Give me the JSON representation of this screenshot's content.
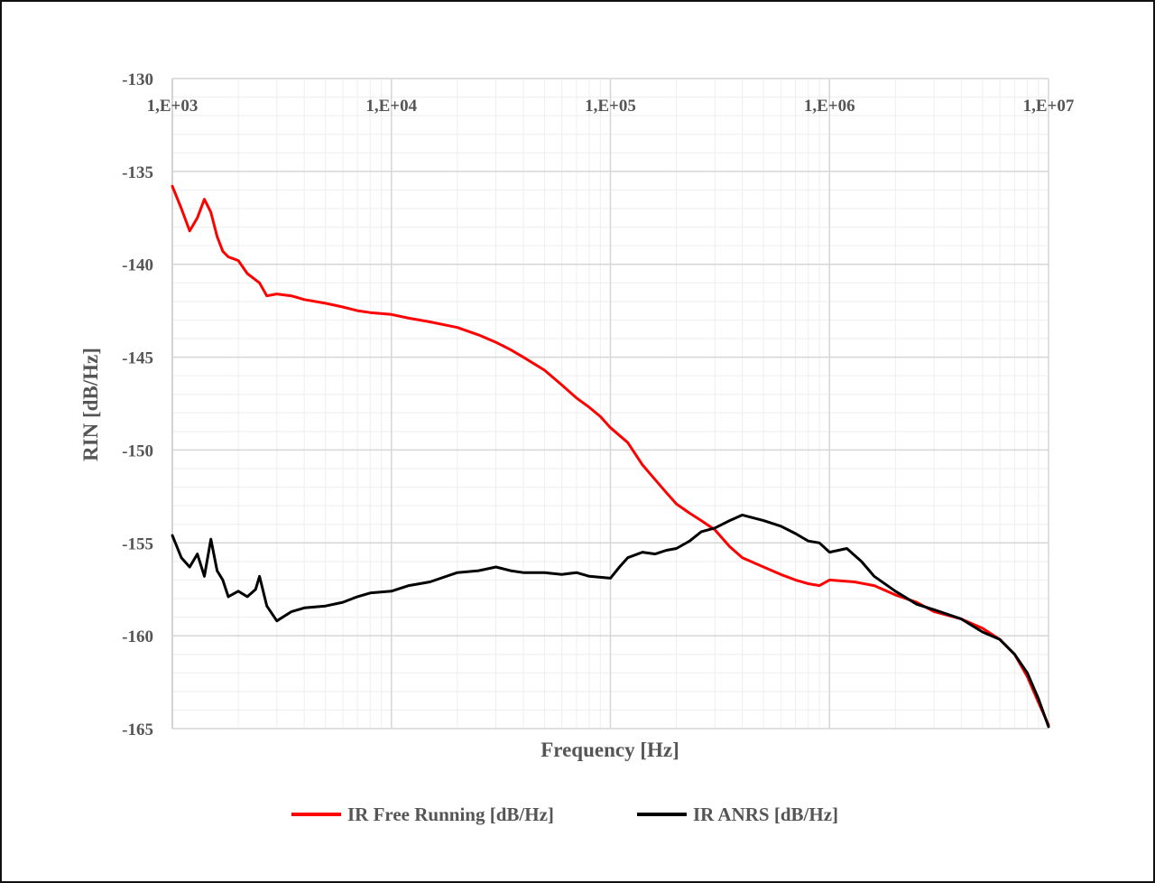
{
  "chart_data": {
    "type": "line",
    "x_scale": "log",
    "xlim": [
      1000,
      10000000
    ],
    "ylim": [
      -165,
      -130
    ],
    "x_tick_values": [
      1000,
      10000,
      100000,
      1000000,
      10000000
    ],
    "x_tick_labels": [
      "1,E+03",
      "1,E+04",
      "1,E+05",
      "1,E+06",
      "1,E+07"
    ],
    "x_tick_position": "top",
    "y_ticks": [
      -130,
      -135,
      -140,
      -145,
      -150,
      -155,
      -160,
      -165
    ],
    "xlabel": "Frequency  [Hz]",
    "ylabel": "RIN [dB/Hz]",
    "grid": true,
    "legend_position": "bottom",
    "series": [
      {
        "name": "IR Free Running [dB/Hz]",
        "color": "#ff0000",
        "points": [
          [
            1000,
            -135.8
          ],
          [
            1100,
            -137.0
          ],
          [
            1200,
            -138.2
          ],
          [
            1300,
            -137.5
          ],
          [
            1400,
            -136.5
          ],
          [
            1500,
            -137.2
          ],
          [
            1600,
            -138.5
          ],
          [
            1700,
            -139.3
          ],
          [
            1800,
            -139.6
          ],
          [
            2000,
            -139.8
          ],
          [
            2200,
            -140.5
          ],
          [
            2500,
            -141.0
          ],
          [
            2700,
            -141.7
          ],
          [
            3000,
            -141.6
          ],
          [
            3500,
            -141.7
          ],
          [
            4000,
            -141.9
          ],
          [
            5000,
            -142.1
          ],
          [
            6000,
            -142.3
          ],
          [
            7000,
            -142.5
          ],
          [
            8000,
            -142.6
          ],
          [
            10000,
            -142.7
          ],
          [
            12000,
            -142.9
          ],
          [
            15000,
            -143.1
          ],
          [
            20000,
            -143.4
          ],
          [
            25000,
            -143.8
          ],
          [
            30000,
            -144.2
          ],
          [
            35000,
            -144.6
          ],
          [
            40000,
            -145.0
          ],
          [
            50000,
            -145.7
          ],
          [
            60000,
            -146.5
          ],
          [
            70000,
            -147.2
          ],
          [
            80000,
            -147.7
          ],
          [
            90000,
            -148.2
          ],
          [
            100000,
            -148.8
          ],
          [
            120000,
            -149.6
          ],
          [
            140000,
            -150.8
          ],
          [
            160000,
            -151.6
          ],
          [
            180000,
            -152.3
          ],
          [
            200000,
            -152.9
          ],
          [
            230000,
            -153.4
          ],
          [
            260000,
            -153.8
          ],
          [
            300000,
            -154.3
          ],
          [
            350000,
            -155.2
          ],
          [
            400000,
            -155.8
          ],
          [
            500000,
            -156.3
          ],
          [
            600000,
            -156.7
          ],
          [
            700000,
            -157.0
          ],
          [
            800000,
            -157.2
          ],
          [
            900000,
            -157.3
          ],
          [
            1000000,
            -157.0
          ],
          [
            1300000,
            -157.1
          ],
          [
            1600000,
            -157.3
          ],
          [
            2000000,
            -157.8
          ],
          [
            2500000,
            -158.2
          ],
          [
            3000000,
            -158.7
          ],
          [
            4000000,
            -159.1
          ],
          [
            5000000,
            -159.6
          ],
          [
            6000000,
            -160.2
          ],
          [
            7000000,
            -161.0
          ],
          [
            8000000,
            -162.2
          ],
          [
            9000000,
            -163.6
          ],
          [
            10000000,
            -164.8
          ]
        ]
      },
      {
        "name": "IR ANRS [dB/Hz]",
        "color": "#000000",
        "points": [
          [
            1000,
            -154.6
          ],
          [
            1100,
            -155.8
          ],
          [
            1200,
            -156.3
          ],
          [
            1300,
            -155.6
          ],
          [
            1400,
            -156.8
          ],
          [
            1500,
            -154.8
          ],
          [
            1600,
            -156.5
          ],
          [
            1700,
            -157.0
          ],
          [
            1800,
            -157.9
          ],
          [
            2000,
            -157.6
          ],
          [
            2200,
            -157.9
          ],
          [
            2400,
            -157.5
          ],
          [
            2500,
            -156.8
          ],
          [
            2700,
            -158.4
          ],
          [
            3000,
            -159.2
          ],
          [
            3500,
            -158.7
          ],
          [
            4000,
            -158.5
          ],
          [
            5000,
            -158.4
          ],
          [
            6000,
            -158.2
          ],
          [
            7000,
            -157.9
          ],
          [
            8000,
            -157.7
          ],
          [
            10000,
            -157.6
          ],
          [
            12000,
            -157.3
          ],
          [
            15000,
            -157.1
          ],
          [
            20000,
            -156.6
          ],
          [
            25000,
            -156.5
          ],
          [
            30000,
            -156.3
          ],
          [
            35000,
            -156.5
          ],
          [
            40000,
            -156.6
          ],
          [
            50000,
            -156.6
          ],
          [
            60000,
            -156.7
          ],
          [
            70000,
            -156.6
          ],
          [
            80000,
            -156.8
          ],
          [
            100000,
            -156.9
          ],
          [
            110000,
            -156.3
          ],
          [
            120000,
            -155.8
          ],
          [
            140000,
            -155.5
          ],
          [
            160000,
            -155.6
          ],
          [
            180000,
            -155.4
          ],
          [
            200000,
            -155.3
          ],
          [
            230000,
            -154.9
          ],
          [
            260000,
            -154.4
          ],
          [
            300000,
            -154.2
          ],
          [
            350000,
            -153.8
          ],
          [
            400000,
            -153.5
          ],
          [
            500000,
            -153.8
          ],
          [
            600000,
            -154.1
          ],
          [
            700000,
            -154.5
          ],
          [
            800000,
            -154.9
          ],
          [
            900000,
            -155.0
          ],
          [
            1000000,
            -155.5
          ],
          [
            1200000,
            -155.3
          ],
          [
            1400000,
            -156.0
          ],
          [
            1600000,
            -156.8
          ],
          [
            2000000,
            -157.6
          ],
          [
            2500000,
            -158.3
          ],
          [
            3000000,
            -158.6
          ],
          [
            4000000,
            -159.1
          ],
          [
            5000000,
            -159.8
          ],
          [
            6000000,
            -160.2
          ],
          [
            7000000,
            -161.0
          ],
          [
            8000000,
            -162.0
          ],
          [
            9000000,
            -163.4
          ],
          [
            10000000,
            -164.9
          ]
        ]
      }
    ]
  }
}
